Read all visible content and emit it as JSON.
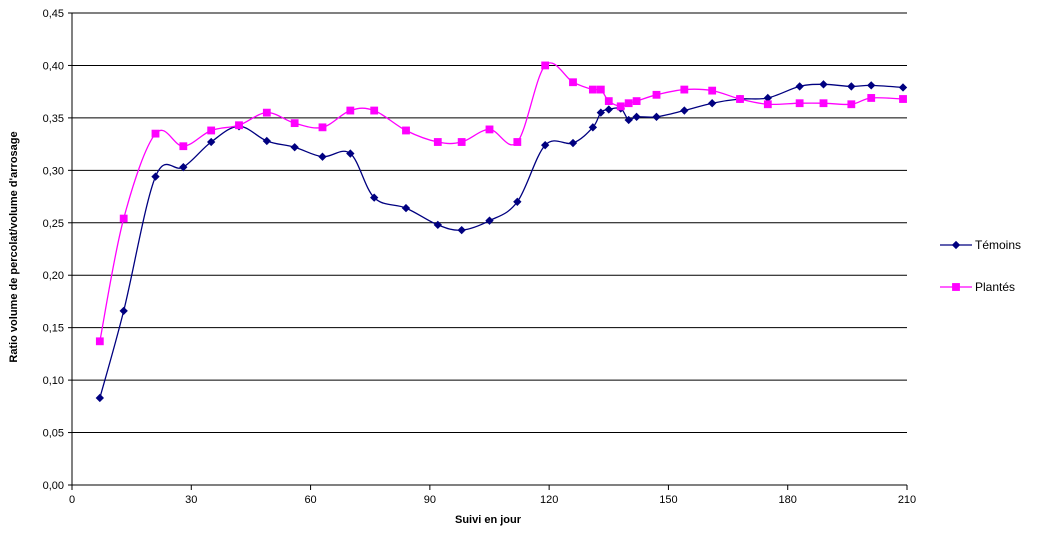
{
  "chart_data": {
    "type": "line",
    "xlabel": "Suivi en jour",
    "ylabel": "Ratio volume de percolat/volume d'arrosage",
    "xlim": [
      0,
      210
    ],
    "ylim": [
      0,
      0.45
    ],
    "x_ticks": [
      0,
      30,
      60,
      90,
      120,
      150,
      180,
      210
    ],
    "x_tick_labels": [
      "0",
      "30",
      "60",
      "90",
      "120",
      "150",
      "180",
      "210"
    ],
    "y_ticks": [
      0,
      0.05,
      0.1,
      0.15,
      0.2,
      0.25,
      0.3,
      0.35,
      0.4,
      0.45
    ],
    "y_tick_labels": [
      "0,00",
      "0,05",
      "0,10",
      "0,15",
      "0,20",
      "0,25",
      "0,30",
      "0,35",
      "0,40",
      "0,45"
    ],
    "grid": "horizontal",
    "legend_position": "right",
    "series": [
      {
        "name": "Témoins",
        "color": "#000080",
        "marker": "diamond",
        "x": [
          7,
          13,
          21,
          28,
          35,
          42,
          49,
          56,
          63,
          70,
          76,
          84,
          92,
          98,
          105,
          112,
          119,
          126,
          131,
          133,
          135,
          138,
          140,
          142,
          147,
          154,
          161,
          168,
          175,
          183,
          189,
          196,
          201,
          209
        ],
        "y": [
          0.083,
          0.166,
          0.294,
          0.303,
          0.327,
          0.342,
          0.328,
          0.322,
          0.313,
          0.316,
          0.274,
          0.264,
          0.248,
          0.243,
          0.252,
          0.27,
          0.324,
          0.326,
          0.341,
          0.355,
          0.358,
          0.359,
          0.348,
          0.351,
          0.351,
          0.357,
          0.364,
          0.368,
          0.369,
          0.38,
          0.382,
          0.38,
          0.381,
          0.379
        ]
      },
      {
        "name": "Plantés",
        "color": "#ff00ff",
        "marker": "square",
        "x": [
          7,
          13,
          21,
          28,
          35,
          42,
          49,
          56,
          63,
          70,
          76,
          84,
          92,
          98,
          105,
          112,
          119,
          126,
          131,
          133,
          135,
          138,
          140,
          142,
          147,
          154,
          161,
          168,
          175,
          183,
          189,
          196,
          201,
          209
        ],
        "y": [
          0.137,
          0.254,
          0.335,
          0.323,
          0.338,
          0.343,
          0.355,
          0.345,
          0.341,
          0.357,
          0.357,
          0.338,
          0.327,
          0.327,
          0.339,
          0.327,
          0.4,
          0.384,
          0.377,
          0.377,
          0.366,
          0.361,
          0.364,
          0.366,
          0.372,
          0.377,
          0.376,
          0.368,
          0.363,
          0.364,
          0.364,
          0.363,
          0.369,
          0.368
        ]
      }
    ]
  }
}
